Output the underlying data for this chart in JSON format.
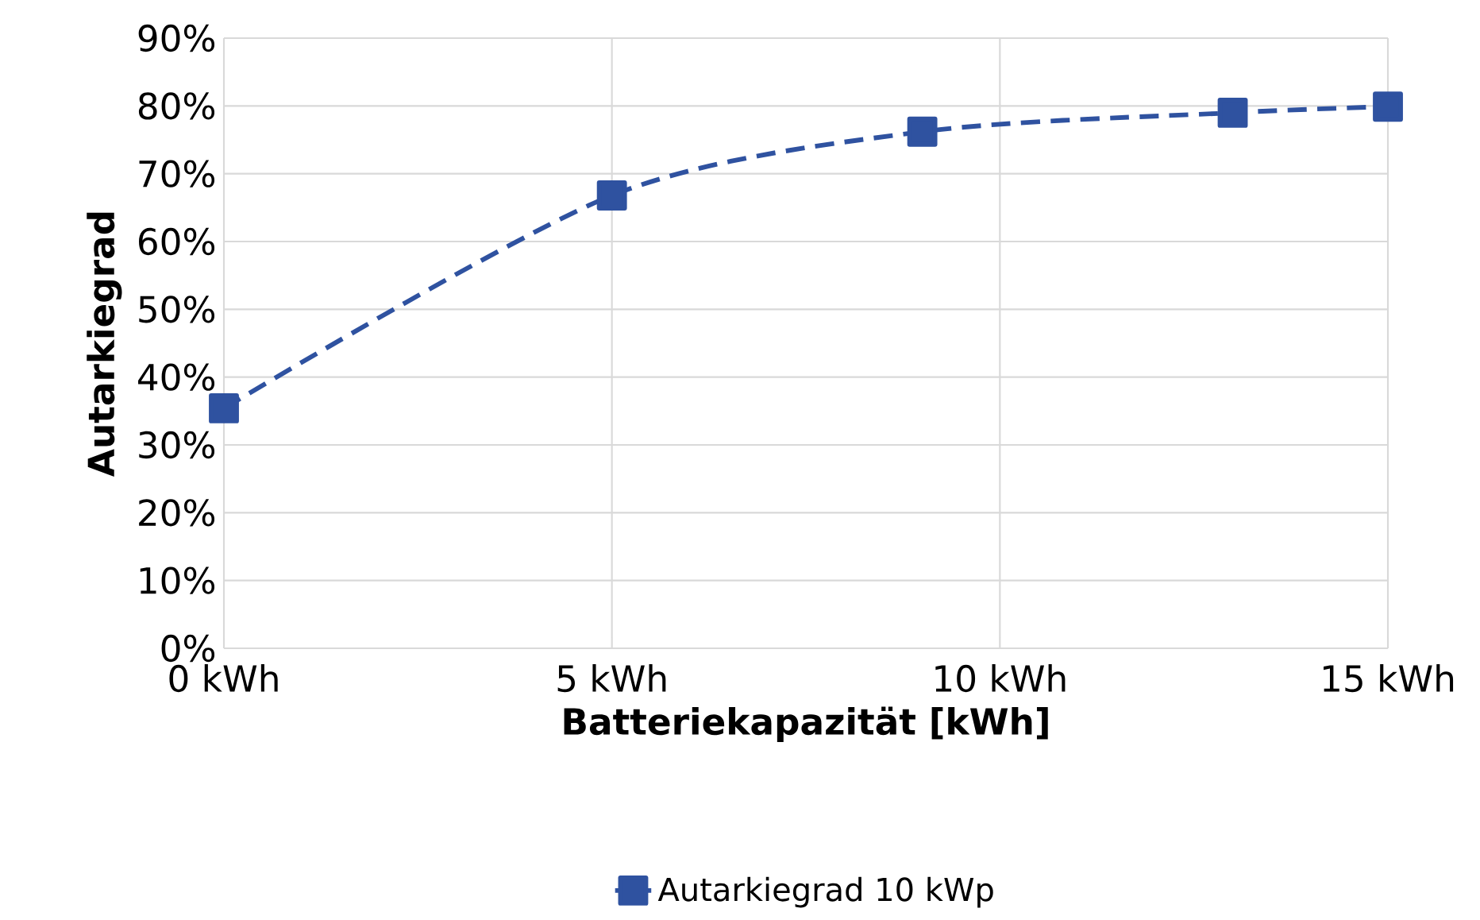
{
  "chart_data": {
    "type": "line",
    "xlabel": "Batteriekapazität [kWh]",
    "ylabel": "Autarkiegrad",
    "x": [
      0,
      5,
      9,
      13,
      15
    ],
    "series": [
      {
        "name": "Autarkiegrad 10 kWp",
        "color": "#2f52a0",
        "values": [
          35.4,
          66.8,
          76.2,
          79,
          79.9
        ]
      }
    ],
    "xlim": [
      0,
      15
    ],
    "ylim": [
      0,
      90
    ],
    "xticks": [
      {
        "value": 0,
        "label": "0 kWh"
      },
      {
        "value": 5,
        "label": "5 kWh"
      },
      {
        "value": 10,
        "label": "10 kWh"
      },
      {
        "value": 15,
        "label": "15 kWh"
      }
    ],
    "yticks": [
      {
        "value": 0,
        "label": "0%"
      },
      {
        "value": 10,
        "label": "10%"
      },
      {
        "value": 20,
        "label": "20%"
      },
      {
        "value": 30,
        "label": "30%"
      },
      {
        "value": 40,
        "label": "40%"
      },
      {
        "value": 50,
        "label": "50%"
      },
      {
        "value": 60,
        "label": "60%"
      },
      {
        "value": 70,
        "label": "70%"
      },
      {
        "value": 80,
        "label": "80%"
      },
      {
        "value": 90,
        "label": "90%"
      }
    ],
    "grid": true,
    "legend": "bottom",
    "marker": "square",
    "line_style": "dashed"
  }
}
